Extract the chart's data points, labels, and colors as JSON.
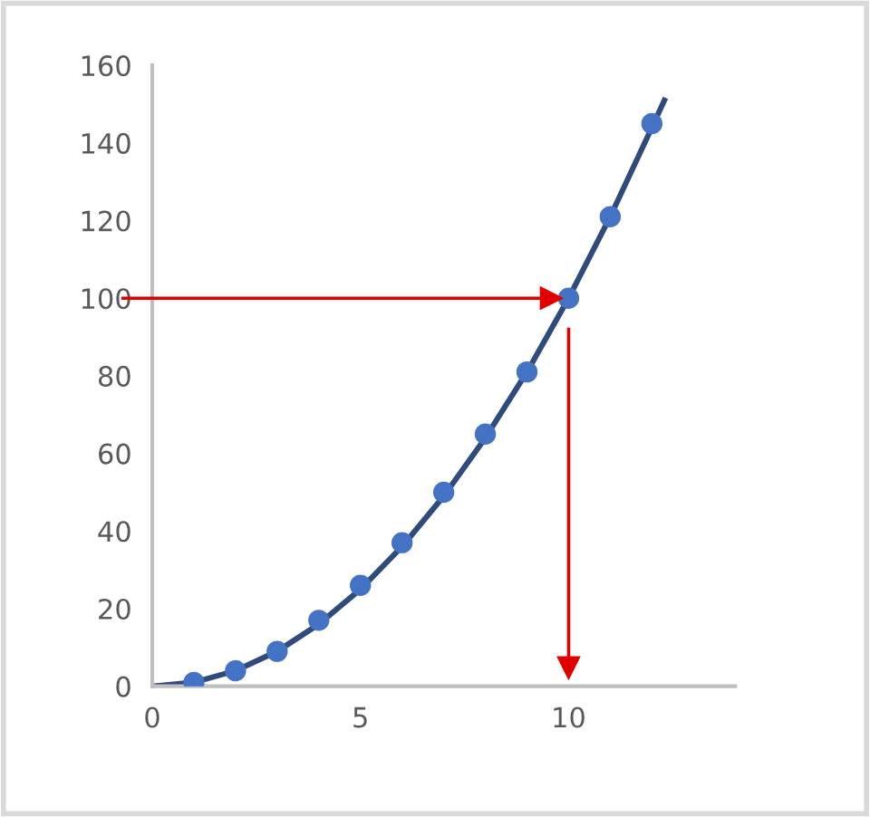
{
  "chart_data": {
    "type": "scatter",
    "xlim": [
      0,
      14
    ],
    "xticks": [
      0,
      5,
      10
    ],
    "ylim": [
      0,
      160
    ],
    "yticks": [
      0,
      20,
      40,
      60,
      80,
      100,
      120,
      140,
      160
    ],
    "grid": false,
    "series": [
      {
        "marker": "circle",
        "color": "#4472c4",
        "x": [
          1,
          2,
          3,
          4,
          5,
          6,
          7,
          8,
          9,
          10,
          11,
          12
        ],
        "values": [
          1,
          4,
          9,
          17,
          26,
          37,
          50,
          65,
          81,
          100,
          121,
          145
        ]
      },
      {
        "type": "line",
        "marker": "none",
        "color": "#2f4b7c",
        "x": [
          0,
          1,
          2,
          3,
          4,
          5,
          6,
          7,
          8,
          9,
          10,
          11,
          12,
          12.3
        ],
        "values": [
          0,
          1,
          4,
          9,
          16,
          25,
          36,
          49,
          64,
          81,
          100,
          121,
          144,
          151
        ]
      }
    ],
    "ref_lines": [
      {
        "axis": "y",
        "value": 100,
        "color": "#e00000"
      },
      {
        "axis": "x",
        "value": 10,
        "color": "#e00000"
      }
    ]
  }
}
